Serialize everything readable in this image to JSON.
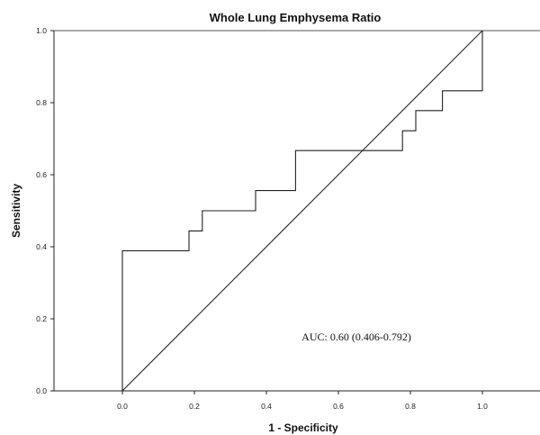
{
  "chart_data": {
    "type": "line",
    "title": "Whole Lung Emphysema Ratio",
    "xlabel": "1 - Specificity",
    "ylabel": "Sensitivity",
    "xlim": [
      -0.19,
      1.16
    ],
    "ylim": [
      0.0,
      1.0
    ],
    "x_ticks": [
      0.0,
      0.2,
      0.4,
      0.6,
      0.8,
      1.0
    ],
    "y_ticks": [
      0.0,
      0.2,
      0.4,
      0.6,
      0.8,
      1.0
    ],
    "x_tick_labels": [
      "0.0",
      "0.2",
      "0.4",
      "0.6",
      "0.8",
      "1.0"
    ],
    "y_tick_labels": [
      "0.0",
      "0.2",
      "0.4",
      "0.6",
      "0.8",
      "1.0"
    ],
    "grid": false,
    "series": [
      {
        "type": "step",
        "x": [
          0.0,
          0.0,
          0.185,
          0.185,
          0.222,
          0.222,
          0.37,
          0.37,
          0.481,
          0.481,
          0.778,
          0.778,
          0.815,
          0.815,
          0.889,
          0.889,
          1.0,
          1.0
        ],
        "y": [
          0.0,
          0.389,
          0.389,
          0.444,
          0.444,
          0.5,
          0.5,
          0.556,
          0.556,
          0.667,
          0.667,
          0.722,
          0.722,
          0.778,
          0.778,
          0.833,
          0.833,
          1.0
        ]
      },
      {
        "type": "reference",
        "x": [
          0.0,
          1.0
        ],
        "y": [
          0.0,
          1.0
        ]
      }
    ],
    "annotations": [
      {
        "text": "AUC: 0.60 (0.406-0.792)",
        "x": 0.65,
        "y": 0.14
      }
    ]
  }
}
